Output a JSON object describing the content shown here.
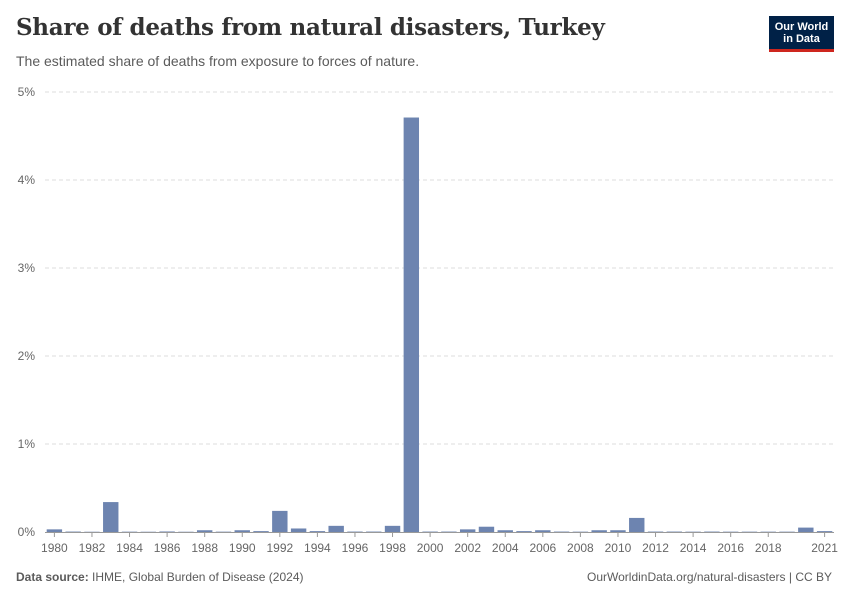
{
  "header": {
    "title": "Share of deaths from natural disasters, Turkey",
    "subtitle": "The estimated share of deaths from exposure to forces of nature.",
    "logo_line1": "Our World",
    "logo_line2": "in Data"
  },
  "footer": {
    "source_label": "Data source:",
    "source_text": "IHME, Global Burden of Disease (2024)",
    "url_text": "OurWorldinData.org/natural-disasters | CC BY"
  },
  "colors": {
    "bar": "#6d84b0",
    "grid": "#dddddd",
    "axis": "#999999",
    "tick_text": "#666666"
  },
  "chart_data": {
    "type": "bar",
    "title": "Share of deaths from natural disasters, Turkey",
    "xlabel": "",
    "ylabel": "",
    "ylim": [
      0,
      5
    ],
    "y_ticks": [
      0,
      1,
      2,
      3,
      4,
      5
    ],
    "y_tick_labels": [
      "0%",
      "1%",
      "2%",
      "3%",
      "4%",
      "5%"
    ],
    "x_tick_labels": [
      "1980",
      "1982",
      "1984",
      "1986",
      "1988",
      "1990",
      "1992",
      "1994",
      "1996",
      "1998",
      "2000",
      "2002",
      "2004",
      "2006",
      "2008",
      "2010",
      "2012",
      "2014",
      "2016",
      "2018",
      "2021"
    ],
    "grid": true,
    "categories": [
      1980,
      1981,
      1982,
      1983,
      1984,
      1985,
      1986,
      1987,
      1988,
      1989,
      1990,
      1991,
      1992,
      1993,
      1994,
      1995,
      1996,
      1997,
      1998,
      1999,
      2000,
      2001,
      2002,
      2003,
      2004,
      2005,
      2006,
      2007,
      2008,
      2009,
      2010,
      2011,
      2012,
      2013,
      2014,
      2015,
      2016,
      2017,
      2018,
      2019,
      2020,
      2021
    ],
    "values": [
      0.03,
      0.005,
      0.003,
      0.34,
      0.004,
      0.003,
      0.006,
      0.003,
      0.02,
      0.004,
      0.02,
      0.01,
      0.24,
      0.04,
      0.01,
      0.07,
      0.005,
      0.005,
      0.07,
      4.71,
      0.005,
      0.005,
      0.03,
      0.06,
      0.02,
      0.01,
      0.02,
      0.005,
      0.004,
      0.02,
      0.02,
      0.16,
      0.005,
      0.005,
      0.004,
      0.005,
      0.004,
      0.004,
      0.004,
      0.004,
      0.05,
      0.01
    ]
  }
}
